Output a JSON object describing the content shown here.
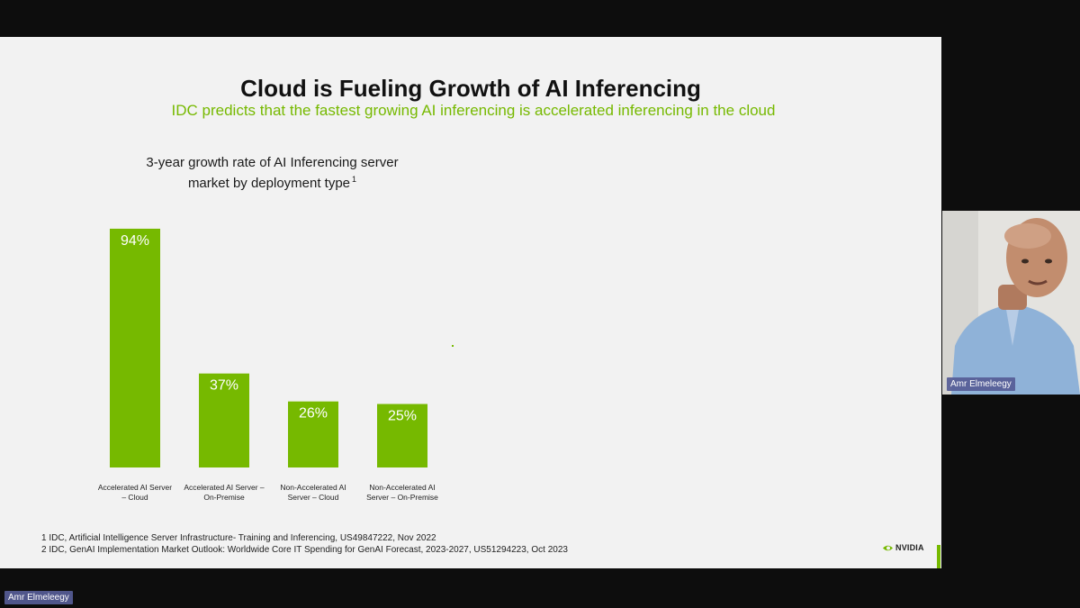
{
  "slide": {
    "title": "Cloud is Fueling Growth of AI Inferencing",
    "subtitle": "IDC predicts that the fastest growing AI inferencing is accelerated inferencing in the cloud",
    "footnotes": [
      "1 IDC, Artificial Intelligence Server Infrastructure- Training and Inferencing, US49847222, Nov 2022",
      "2 IDC, GenAI Implementation Market Outlook: Worldwide Core IT Spending for GenAI Forecast, 2023-2027, US51294223, Oct 2023"
    ],
    "logo_text": "NVIDIA",
    "accent_color": "#76b900"
  },
  "chart_data": {
    "type": "bar",
    "title_line1": "3-year growth rate of AI Inferencing server",
    "title_line2": "market by deployment type",
    "title_superscript": "1",
    "categories": [
      [
        "Accelerated AI Server",
        "– Cloud"
      ],
      [
        "Accelerated AI Server –",
        "On-Premise"
      ],
      [
        "Non-Accelerated AI",
        "Server – Cloud"
      ],
      [
        "Non-Accelerated AI",
        "Server – On-Premise"
      ]
    ],
    "values": [
      94,
      37,
      26,
      25
    ],
    "value_labels": [
      "94%",
      "37%",
      "26%",
      "25%"
    ],
    "unit": "%",
    "ylim": [
      0,
      100
    ],
    "bar_color": "#76b900",
    "label_color": "#ffffff",
    "grid": false
  },
  "video_call": {
    "speaker_name": "Amr Elmeleegy",
    "self_name": "Amr Elmeleegy"
  }
}
